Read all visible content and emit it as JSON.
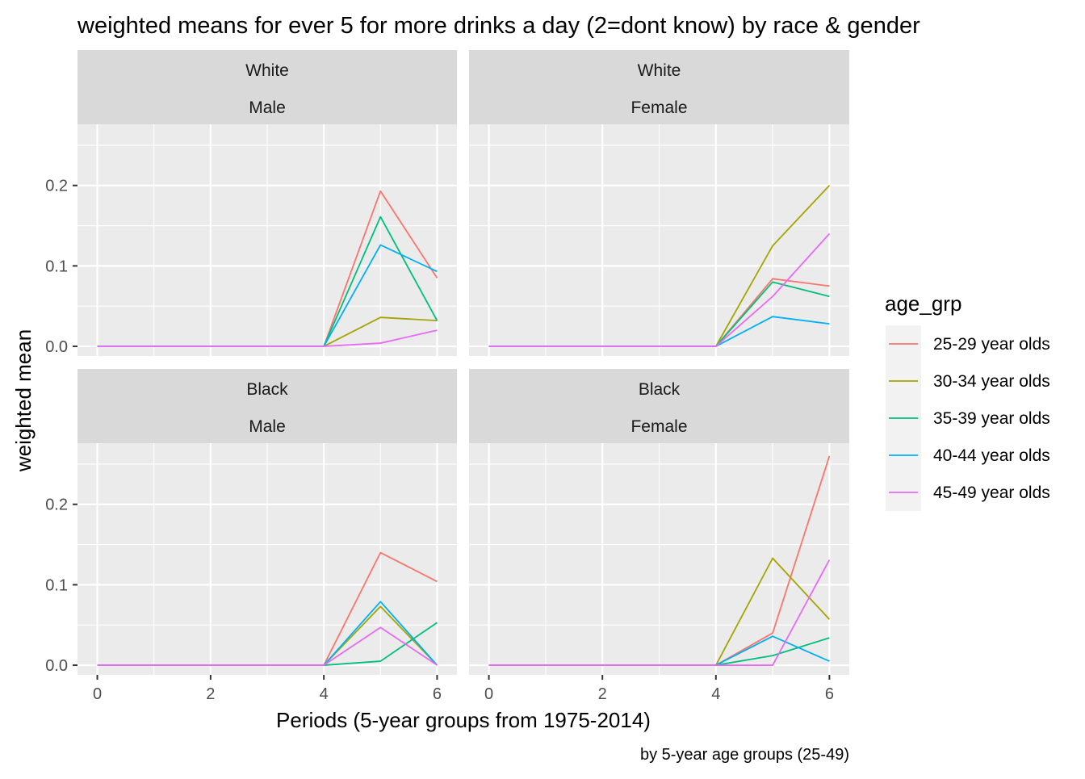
{
  "chart_data": {
    "type": "line",
    "title": "weighted means for ever 5 for more drinks a day (2=dont know) by race & gender",
    "xlabel": "Periods (5-year groups from 1975-2014)",
    "ylabel": "weighted mean",
    "caption": "by 5-year age groups (25-49)",
    "x_ticks": [
      "0",
      "2",
      "4",
      "6"
    ],
    "y_ticks": [
      "0.0",
      "0.1",
      "0.2"
    ],
    "xlim": [
      -0.35,
      6.35
    ],
    "ylim": [
      -0.012,
      0.276
    ],
    "grid": true,
    "legend": {
      "title": "age_grp",
      "position": "right",
      "entries": [
        "25-29 year olds",
        "30-34 year olds",
        "35-39 year olds",
        "40-44 year olds",
        "45-49 year olds"
      ]
    },
    "colors": [
      "#F8766D",
      "#A3A500",
      "#00BF7D",
      "#00B0F6",
      "#E76BF3"
    ],
    "x": [
      0,
      1,
      2,
      3,
      4,
      5,
      6
    ],
    "panels": [
      {
        "row_label": "White",
        "col_label": "Male",
        "series": [
          {
            "name": "25-29 year olds",
            "values": [
              0,
              0,
              0,
              0,
              0,
              0.193,
              0.085
            ]
          },
          {
            "name": "30-34 year olds",
            "values": [
              0,
              0,
              0,
              0,
              0,
              0.036,
              0.032
            ]
          },
          {
            "name": "35-39 year olds",
            "values": [
              0,
              0,
              0,
              0,
              0,
              0.161,
              0.032
            ]
          },
          {
            "name": "40-44 year olds",
            "values": [
              0,
              0,
              0,
              0,
              0,
              0.126,
              0.093
            ]
          },
          {
            "name": "45-49 year olds",
            "values": [
              0,
              0,
              0,
              0,
              0,
              0.004,
              0.02
            ]
          }
        ]
      },
      {
        "row_label": "White",
        "col_label": "Female",
        "series": [
          {
            "name": "25-29 year olds",
            "values": [
              0,
              0,
              0,
              0,
              0,
              0.084,
              0.075
            ]
          },
          {
            "name": "30-34 year olds",
            "values": [
              0,
              0,
              0,
              0,
              0,
              0.125,
              0.2
            ]
          },
          {
            "name": "35-39 year olds",
            "values": [
              0,
              0,
              0,
              0,
              0,
              0.08,
              0.062
            ]
          },
          {
            "name": "40-44 year olds",
            "values": [
              0,
              0,
              0,
              0,
              0,
              0.037,
              0.028
            ]
          },
          {
            "name": "45-49 year olds",
            "values": [
              0,
              0,
              0,
              0,
              0,
              0.062,
              0.14
            ]
          }
        ]
      },
      {
        "row_label": "Black",
        "col_label": "Male",
        "series": [
          {
            "name": "25-29 year olds",
            "values": [
              0,
              0,
              0,
              0,
              0,
              0.14,
              0.104
            ]
          },
          {
            "name": "30-34 year olds",
            "values": [
              0,
              0,
              0,
              0,
              0,
              0.073,
              0
            ]
          },
          {
            "name": "35-39 year olds",
            "values": [
              0,
              0,
              0,
              0,
              0,
              0.005,
              0.053
            ]
          },
          {
            "name": "40-44 year olds",
            "values": [
              0,
              0,
              0,
              0,
              0,
              0.079,
              0
            ]
          },
          {
            "name": "45-49 year olds",
            "values": [
              0,
              0,
              0,
              0,
              0,
              0.047,
              0
            ]
          }
        ]
      },
      {
        "row_label": "Black",
        "col_label": "Female",
        "series": [
          {
            "name": "25-29 year olds",
            "values": [
              0,
              0,
              0,
              0,
              0,
              0.04,
              0.26
            ]
          },
          {
            "name": "30-34 year olds",
            "values": [
              0,
              0,
              0,
              0,
              0,
              0.133,
              0.057
            ]
          },
          {
            "name": "35-39 year olds",
            "values": [
              0,
              0,
              0,
              0,
              0,
              0.012,
              0.034
            ]
          },
          {
            "name": "40-44 year olds",
            "values": [
              0,
              0,
              0,
              0,
              0,
              0.036,
              0.005
            ]
          },
          {
            "name": "45-49 year olds",
            "values": [
              0,
              0,
              0,
              0,
              0,
              0,
              0.131
            ]
          }
        ]
      }
    ]
  }
}
